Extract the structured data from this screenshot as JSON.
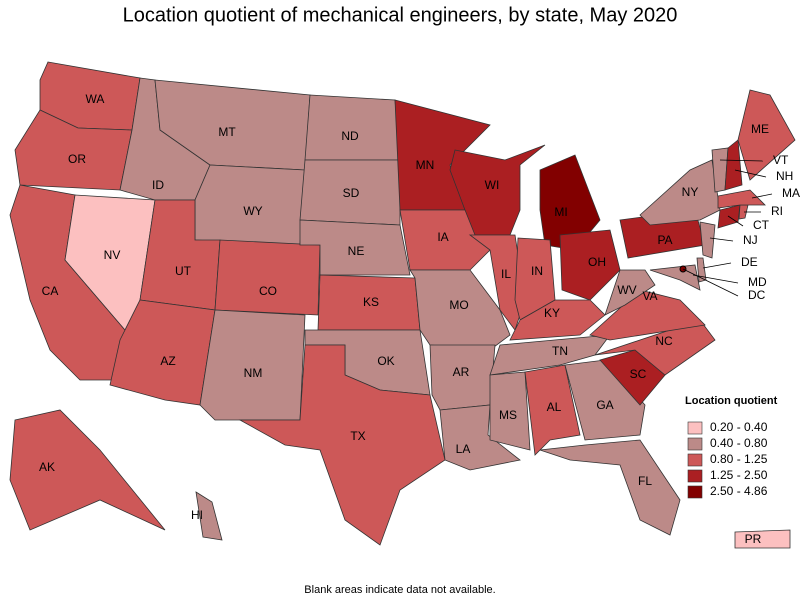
{
  "title": "Location quotient of mechanical engineers, by state, May 2020",
  "legend": {
    "title": "Location quotient",
    "items": [
      {
        "label": "0.20 - 0.40",
        "color": "#fcc0c0"
      },
      {
        "label": "0.40 - 0.80",
        "color": "#bc8a88"
      },
      {
        "label": "0.80 - 1.25",
        "color": "#cd5858"
      },
      {
        "label": "1.25 - 2.50",
        "color": "#ab1f22"
      },
      {
        "label": "2.50 - 4.86",
        "color": "#820000"
      }
    ]
  },
  "states": [
    {
      "label": "WA",
      "class": 2
    },
    {
      "label": "OR",
      "class": 2
    },
    {
      "label": "CA",
      "class": 2
    },
    {
      "label": "NV",
      "class": 0
    },
    {
      "label": "ID",
      "class": 1
    },
    {
      "label": "MT",
      "class": 1
    },
    {
      "label": "WY",
      "class": 1
    },
    {
      "label": "UT",
      "class": 2
    },
    {
      "label": "CO",
      "class": 2
    },
    {
      "label": "AZ",
      "class": 2
    },
    {
      "label": "NM",
      "class": 1
    },
    {
      "label": "ND",
      "class": 1
    },
    {
      "label": "SD",
      "class": 1
    },
    {
      "label": "NE",
      "class": 1
    },
    {
      "label": "KS",
      "class": 2
    },
    {
      "label": "OK",
      "class": 1
    },
    {
      "label": "TX",
      "class": 2
    },
    {
      "label": "MN",
      "class": 3
    },
    {
      "label": "IA",
      "class": 2
    },
    {
      "label": "MO",
      "class": 1
    },
    {
      "label": "AR",
      "class": 1
    },
    {
      "label": "LA",
      "class": 1
    },
    {
      "label": "WI",
      "class": 3
    },
    {
      "label": "IL",
      "class": 2
    },
    {
      "label": "MI",
      "class": 4
    },
    {
      "label": "IN",
      "class": 2
    },
    {
      "label": "OH",
      "class": 3
    },
    {
      "label": "KY",
      "class": 2
    },
    {
      "label": "TN",
      "class": 1
    },
    {
      "label": "MS",
      "class": 1
    },
    {
      "label": "AL",
      "class": 2
    },
    {
      "label": "GA",
      "class": 1
    },
    {
      "label": "FL",
      "class": 1
    },
    {
      "label": "SC",
      "class": 3
    },
    {
      "label": "NC",
      "class": 2
    },
    {
      "label": "VA",
      "class": 2
    },
    {
      "label": "WV",
      "class": 1
    },
    {
      "label": "PA",
      "class": 3
    },
    {
      "label": "NY",
      "class": 1
    },
    {
      "label": "MD",
      "class": 1
    },
    {
      "label": "DE",
      "class": 1
    },
    {
      "label": "NJ",
      "class": 1
    },
    {
      "label": "CT",
      "class": 3
    },
    {
      "label": "RI",
      "class": 2
    },
    {
      "label": "MA",
      "class": 2
    },
    {
      "label": "VT",
      "class": 1
    },
    {
      "label": "NH",
      "class": 3
    },
    {
      "label": "ME",
      "class": 2
    },
    {
      "label": "AK",
      "class": 2
    },
    {
      "label": "HI",
      "class": 1
    },
    {
      "label": "PR",
      "class": 0
    },
    {
      "label": "DC",
      "class": 4
    }
  ],
  "footnote": "Blank areas indicate data not available."
}
